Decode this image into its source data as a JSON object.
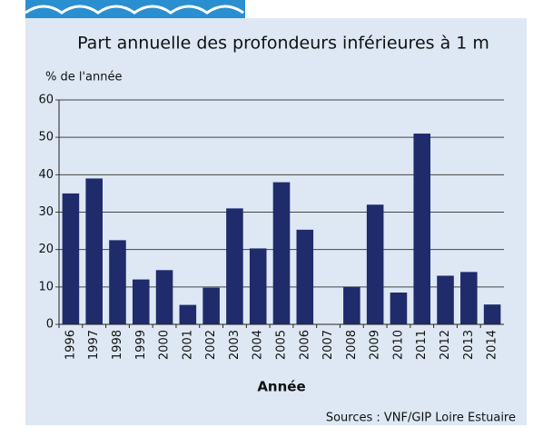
{
  "chart_data": {
    "type": "bar",
    "title": "Part annuelle des profondeurs inférieures à 1 m",
    "y_label": "% de l'année",
    "x_label": "Année",
    "source": "Sources : VNF/GIP Loire Estuaire",
    "categories": [
      "1996",
      "1997",
      "1998",
      "1999",
      "2000",
      "2001",
      "2002",
      "2003",
      "2004",
      "2005",
      "2006",
      "2007",
      "2008",
      "2009",
      "2010",
      "2011",
      "2012",
      "2013",
      "2014"
    ],
    "values": [
      35,
      39,
      22.5,
      12,
      14.5,
      5.2,
      9.8,
      31,
      20.3,
      38,
      25.3,
      0,
      10,
      32,
      8.5,
      51,
      13,
      14,
      5.3
    ],
    "color": "#1f2b6b",
    "ylim": [
      0,
      60
    ],
    "yticks": [
      0,
      10,
      20,
      30,
      40,
      50,
      60
    ],
    "grid": true
  }
}
